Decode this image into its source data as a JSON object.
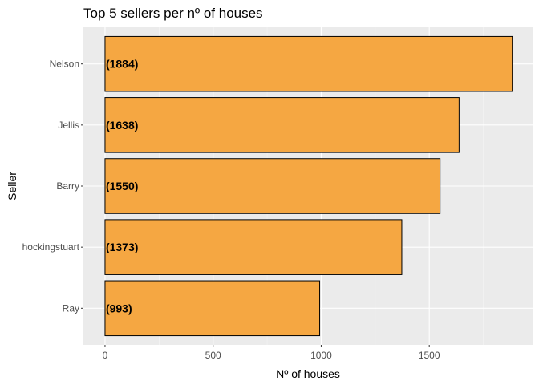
{
  "chart_data": {
    "type": "bar",
    "orientation": "horizontal",
    "title": "Top 5 sellers per nº of houses",
    "xlabel": "Nº of houses",
    "ylabel": "Seller",
    "categories": [
      "Nelson",
      "Jellis",
      "Barry",
      "hockingstuart",
      "Ray"
    ],
    "values": [
      1884,
      1638,
      1550,
      1373,
      993
    ],
    "data_labels": [
      "(1884)",
      "(1638)",
      "(1550)",
      "(1373)",
      "(993)"
    ],
    "xticks": [
      0,
      500,
      1000,
      1500
    ],
    "xlim": [
      -100,
      1978
    ],
    "grid": true,
    "colors": {
      "bar_fill": "#F5A742",
      "bar_stroke": "#000000",
      "panel_background": "#EBEBEB",
      "grid_major": "#FFFFFF",
      "grid_minor": "#F5F5F5"
    }
  }
}
